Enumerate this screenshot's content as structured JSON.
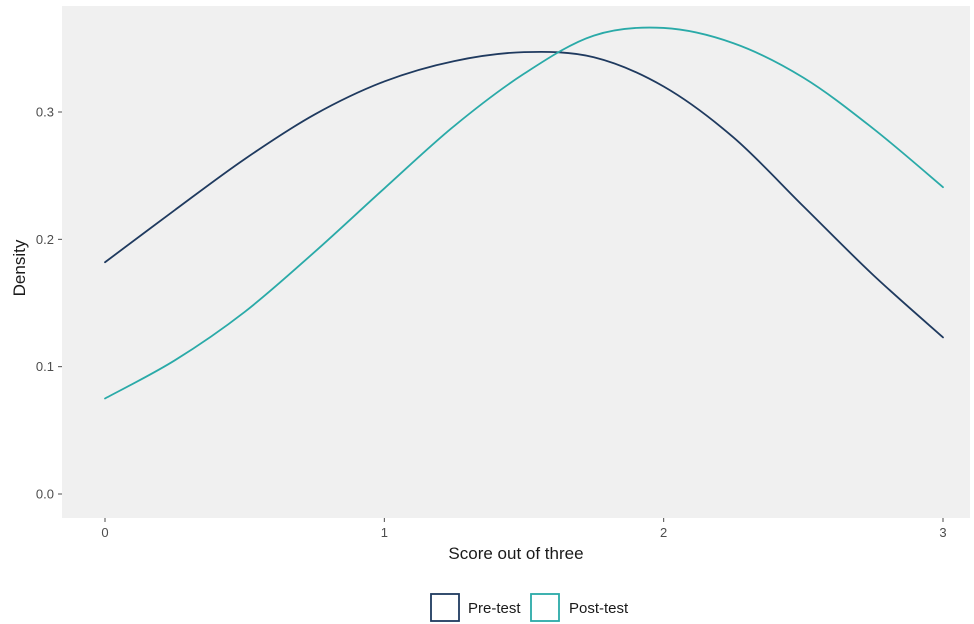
{
  "chart_data": {
    "type": "line",
    "title": "",
    "xlabel": "Score out of three",
    "ylabel": "Density",
    "xlim": [
      -0.15,
      3.1
    ],
    "ylim": [
      -0.02,
      0.385
    ],
    "x_ticks": [
      0,
      1,
      2,
      3
    ],
    "x_tick_labels": [
      "0",
      "1",
      "2",
      "3"
    ],
    "y_ticks": [
      0.0,
      0.1,
      0.2,
      0.3
    ],
    "y_tick_labels": [
      "0.0",
      "0.1",
      "0.2",
      "0.3"
    ],
    "grid": false,
    "legend_position": "bottom",
    "series": [
      {
        "name": "Pre-test",
        "color": "#1f3a5f",
        "x": [
          0,
          0.25,
          0.5,
          0.75,
          1.0,
          1.25,
          1.5,
          1.75,
          2.0,
          2.25,
          2.5,
          2.75,
          3.0
        ],
        "y": [
          0.182,
          0.223,
          0.263,
          0.298,
          0.324,
          0.34,
          0.347,
          0.343,
          0.32,
          0.28,
          0.226,
          0.172,
          0.123
        ]
      },
      {
        "name": "Post-test",
        "color": "#2aaaa8",
        "x": [
          0,
          0.25,
          0.5,
          0.75,
          1.0,
          1.25,
          1.5,
          1.75,
          2.0,
          2.25,
          2.5,
          2.75,
          3.0
        ],
        "y": [
          0.075,
          0.105,
          0.143,
          0.19,
          0.24,
          0.289,
          0.33,
          0.36,
          0.366,
          0.354,
          0.327,
          0.287,
          0.241
        ]
      }
    ]
  }
}
